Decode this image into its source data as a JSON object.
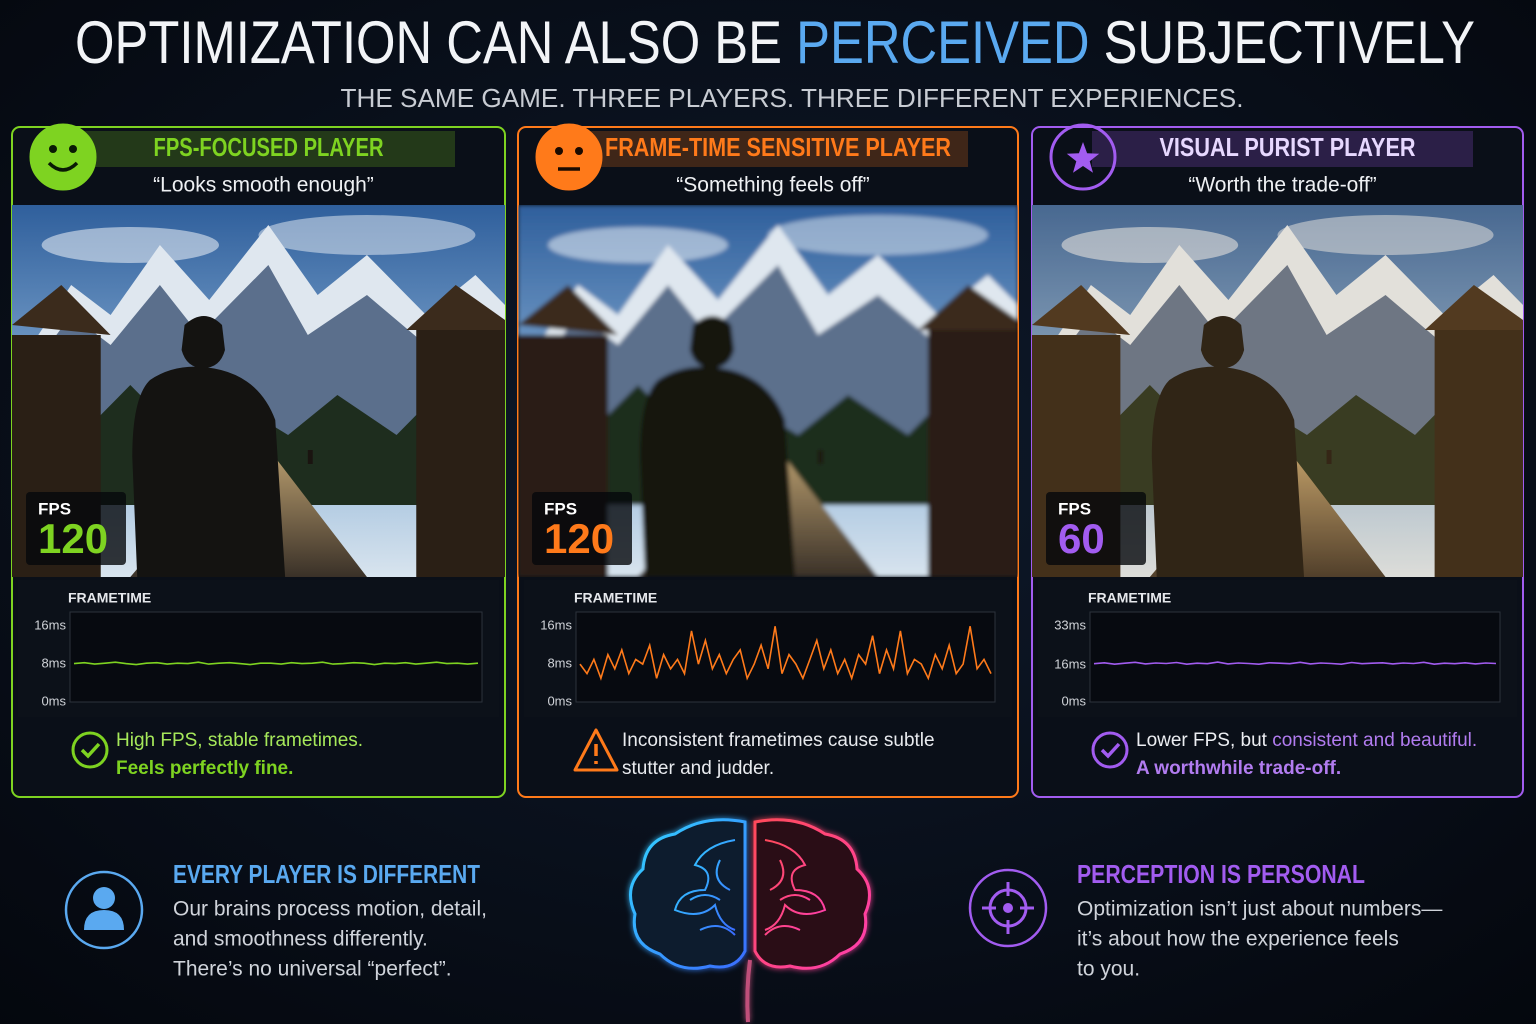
{
  "header": {
    "title": [
      {
        "text": "OPTIMIZATION CAN ALSO BE ",
        "color": "#f2f4f7"
      },
      {
        "text": "PERCEIVED",
        "color": "#5aa9f0"
      },
      {
        "text": " SUBJECTIVELY",
        "color": "#f2f4f7"
      }
    ],
    "subtitle": "THE SAME GAME. THREE PLAYERS. THREE DIFFERENT EXPERIENCES."
  },
  "panels": [
    {
      "title": "FPS-FOCUSED PLAYER",
      "quote": "“Looks smooth enough”",
      "color": "#7ed321",
      "fps_label": "FPS",
      "fps": 120,
      "frametime": {
        "label": "FRAMETIME",
        "ylim": [
          0,
          19
        ],
        "yticks": [
          {
            "value": 16,
            "label": "16ms"
          },
          {
            "value": 8,
            "label": "8ms"
          },
          {
            "value": 0,
            "label": "0ms"
          }
        ],
        "values": [
          8.1,
          8.3,
          8.0,
          8.2,
          8.4,
          8.1,
          7.9,
          8.2,
          8.3,
          8.0,
          8.2,
          8.1,
          8.4,
          8.0,
          8.2,
          8.3,
          8.1,
          7.9,
          8.2,
          8.2,
          8.0,
          8.3,
          8.1,
          8.2,
          8.4,
          8.0,
          8.1,
          8.3,
          8.2,
          7.9,
          8.2,
          8.1,
          8.3,
          8.0,
          8.2,
          8.4,
          8.1,
          8.2,
          8.0,
          8.2
        ]
      },
      "notes": [
        [
          {
            "text": "High FPS, stable frametimes.",
            "color": "#a6e85a"
          }
        ],
        [
          {
            "text": "Feels perfectly fine.",
            "color": "#7ed321",
            "bold": true
          }
        ]
      ]
    },
    {
      "title": "FRAME-TIME SENSITIVE PLAYER",
      "quote": "“Something feels off”",
      "color": "#ff7a1a",
      "fps_label": "FPS",
      "fps": 120,
      "frametime": {
        "label": "FRAMETIME",
        "ylim": [
          0,
          19
        ],
        "yticks": [
          {
            "value": 16,
            "label": "16ms"
          },
          {
            "value": 8,
            "label": "8ms"
          },
          {
            "value": 0,
            "label": "0ms"
          }
        ],
        "values": [
          8,
          6,
          9,
          5,
          10,
          7,
          11,
          6,
          9,
          8,
          12,
          5,
          10,
          7,
          9,
          6,
          15,
          8,
          13,
          7,
          10,
          6,
          9,
          11,
          5,
          8,
          12,
          7,
          16,
          6,
          10,
          8,
          5,
          9,
          13,
          7,
          11,
          6,
          9,
          5,
          10,
          8,
          14,
          6,
          11,
          7,
          15,
          6,
          9,
          8,
          5,
          10,
          7,
          12,
          6,
          8,
          16,
          7,
          9,
          6
        ]
      },
      "notes": [
        [
          {
            "text": "Inconsistent frametimes cause subtle",
            "color": "#e8eaee"
          }
        ],
        [
          {
            "text": "stutter and judder.",
            "color": "#e8eaee"
          }
        ]
      ]
    },
    {
      "title": "VISUAL PURIST PLAYER",
      "quote": "“Worth the trade-off”",
      "color": "#a25cf0",
      "fps_label": "FPS",
      "fps": 60,
      "frametime": {
        "label": "FRAMETIME",
        "ylim": [
          0,
          39
        ],
        "yticks": [
          {
            "value": 33,
            "label": "33ms"
          },
          {
            "value": 16,
            "label": "16ms"
          },
          {
            "value": 0,
            "label": "0ms"
          }
        ],
        "values": [
          16.6,
          17.0,
          16.4,
          16.8,
          17.2,
          16.5,
          16.9,
          16.7,
          17.1,
          16.4,
          16.8,
          16.6,
          17.3,
          16.5,
          16.9,
          16.7,
          16.4,
          17.0,
          16.8,
          16.6,
          17.2,
          16.5,
          16.9,
          16.7,
          16.4,
          17.1,
          16.6,
          16.8,
          17.0,
          16.5,
          16.9,
          16.7,
          17.2,
          16.4,
          16.8,
          16.6,
          17.0,
          16.5,
          16.9,
          16.7
        ]
      },
      "notes": [
        [
          {
            "text": "Lower FPS, but ",
            "color": "#eceef2"
          },
          {
            "text": "consistent and beautiful.",
            "color": "#b27cf0"
          }
        ],
        [
          {
            "text": "A worthwhile trade-off.",
            "color": "#b27cf0",
            "bold": true
          }
        ]
      ]
    }
  ],
  "footer": {
    "left": {
      "heading": "EVERY PLAYER IS DIFFERENT",
      "color": "#5aa9f0",
      "lines": [
        "Our brains process motion, detail,",
        "and smoothness differently.",
        "There’s no universal “perfect”."
      ]
    },
    "right": {
      "heading": "PERCEPTION IS PERSONAL",
      "color": "#a25cf0",
      "lines": [
        "Optimization isn’t just about numbers—",
        "it’s about how the experience feels",
        "to you."
      ]
    }
  }
}
